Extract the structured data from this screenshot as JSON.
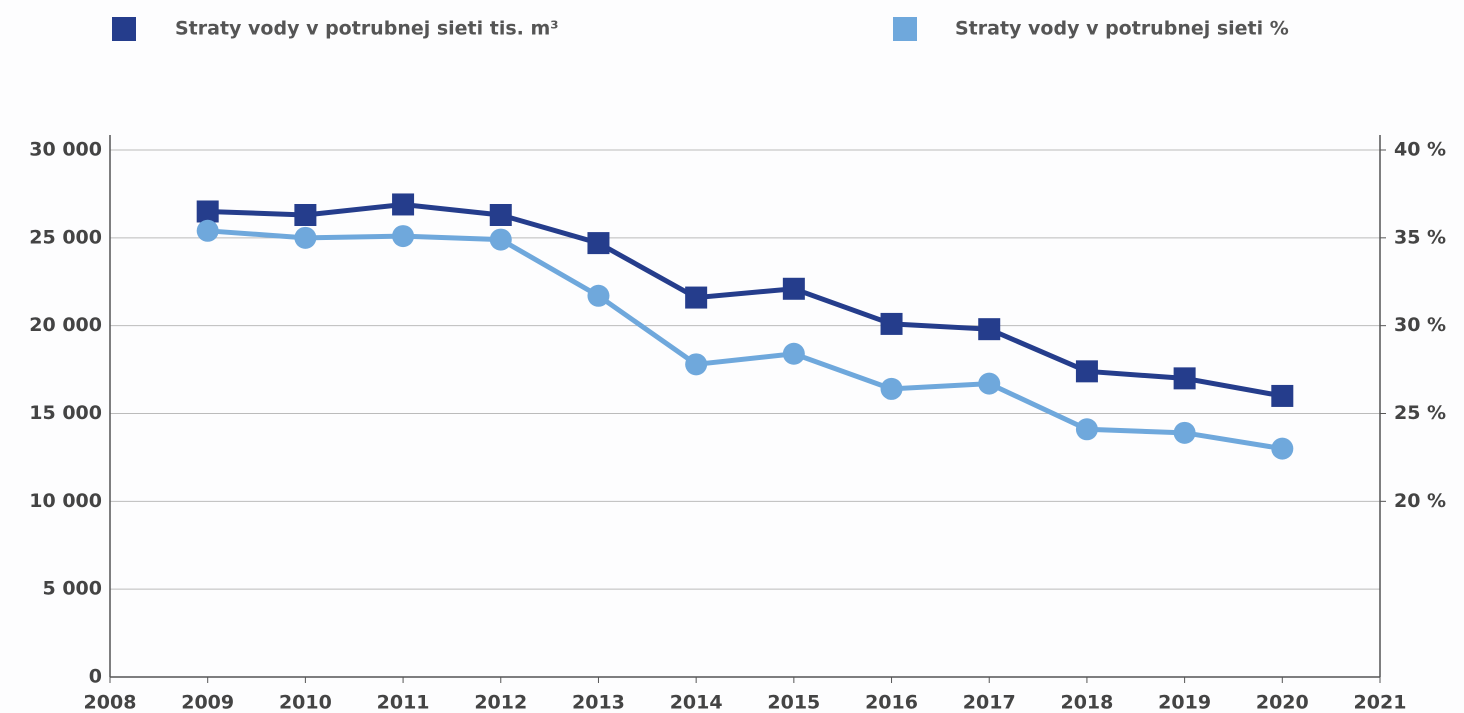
{
  "chart_data": {
    "type": "line",
    "x": [
      2009,
      2010,
      2011,
      2012,
      2013,
      2014,
      2015,
      2016,
      2017,
      2018,
      2019,
      2020
    ],
    "series": [
      {
        "name": "Straty vody v potrubnej sieti tis. m³",
        "color": "#253d8c",
        "values": [
          26500,
          26300,
          26900,
          26300,
          24700,
          21600,
          22100,
          20100,
          19800,
          17400,
          17000,
          16000
        ]
      },
      {
        "name": "Straty vody v potrubnej sieti %",
        "color": "#6fa8dc",
        "axis": "y2",
        "values": [
          35.4,
          35.0,
          35.1,
          34.9,
          31.7,
          27.8,
          28.4,
          26.4,
          26.7,
          24.1,
          23.9,
          23.0
        ]
      }
    ],
    "xlim": [
      2008,
      2021
    ],
    "xticks": [
      2008,
      2009,
      2010,
      2011,
      2012,
      2013,
      2014,
      2015,
      2016,
      2017,
      2018,
      2019,
      2020,
      2021
    ],
    "ylim": [
      0,
      30000
    ],
    "yticks": [
      0,
      {
        "value": 5000,
        "label": "5 000"
      },
      {
        "value": 10000,
        "label": "10 000"
      },
      {
        "value": 15000,
        "label": "15 000"
      },
      {
        "value": 20000,
        "label": "20 000"
      },
      {
        "value": 25000,
        "label": "25 000"
      },
      {
        "value": 30000,
        "label": "30 000"
      }
    ],
    "y2lim": [
      10,
      40
    ],
    "y2ticks": [
      {
        "value": 20,
        "label": "20 %"
      },
      {
        "value": 25,
        "label": "25 %"
      },
      {
        "value": 30,
        "label": "30 %"
      },
      {
        "value": 35,
        "label": "35 %"
      },
      {
        "value": 40,
        "label": "40 %"
      }
    ],
    "grid": true
  }
}
